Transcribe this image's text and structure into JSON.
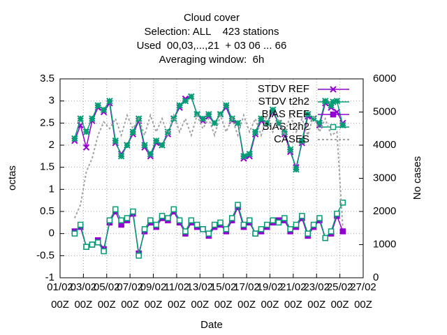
{
  "chart_data": {
    "type": "line",
    "title": [
      "Cloud cover",
      "Selection: ALL    423 stations",
      "Used  00,03,...,21  + 03 06 ... 66",
      "Averaging window:  6h"
    ],
    "xlabel": "Date",
    "ylabel": "octas",
    "y2label": "No cases",
    "xlim": [
      0,
      26
    ],
    "xticks": [
      {
        "value": 0,
        "label": "01/02 00Z"
      },
      {
        "value": 2,
        "label": "03/02 00Z"
      },
      {
        "value": 4,
        "label": "05/02 00Z"
      },
      {
        "value": 6,
        "label": "07/02 00Z"
      },
      {
        "value": 8,
        "label": "09/02 00Z"
      },
      {
        "value": 10,
        "label": "11/02 00Z"
      },
      {
        "value": 12,
        "label": "13/02 00Z"
      },
      {
        "value": 14,
        "label": "15/02 00Z"
      },
      {
        "value": 16,
        "label": "17/02 00Z"
      },
      {
        "value": 18,
        "label": "19/02 00Z"
      },
      {
        "value": 20,
        "label": "21/02 00Z"
      },
      {
        "value": 22,
        "label": "23/02 00Z"
      },
      {
        "value": 24,
        "label": "25/02 00Z"
      },
      {
        "value": 26,
        "label": "27/02 00Z"
      }
    ],
    "ylim": [
      -1,
      3.5
    ],
    "yticks": [
      -1,
      -0.5,
      0,
      0.5,
      1,
      1.5,
      2,
      2.5,
      3,
      3.5
    ],
    "y2lim": [
      0,
      6000
    ],
    "y2ticks": [
      0,
      1000,
      2000,
      3000,
      4000,
      5000,
      6000
    ],
    "grid": true,
    "legend": "top-right",
    "x": [
      1.25,
      1.75,
      2.25,
      2.75,
      3.25,
      3.75,
      4.25,
      4.75,
      5.25,
      5.75,
      6.25,
      6.75,
      7.25,
      7.75,
      8.25,
      8.75,
      9.25,
      9.75,
      10.25,
      10.75,
      11.25,
      11.75,
      12.25,
      12.75,
      13.25,
      13.75,
      14.25,
      14.75,
      15.25,
      15.75,
      16.25,
      16.75,
      17.25,
      17.75,
      18.25,
      18.75,
      19.25,
      19.75,
      20.25,
      20.75,
      21.25,
      21.75,
      22.25,
      22.75,
      23.25,
      23.75,
      24.25
    ],
    "series": [
      {
        "name": "STDV REF",
        "color": "#9400d3",
        "marker": "star",
        "values": [
          2.1,
          2.45,
          1.95,
          2.55,
          2.85,
          2.75,
          2.95,
          2.05,
          1.8,
          2.0,
          2.25,
          2.55,
          1.95,
          1.75,
          2.05,
          2.0,
          2.25,
          2.6,
          2.85,
          3.05,
          3.1,
          2.7,
          2.55,
          2.65,
          2.5,
          2.7,
          2.85,
          2.55,
          2.5,
          1.7,
          1.75,
          2.25,
          2.55,
          2.5,
          2.75,
          2.5,
          2.25,
          1.85,
          1.5,
          2.05,
          2.65,
          2.6,
          2.45,
          2.95,
          2.85,
          2.75,
          2.5
        ]
      },
      {
        "name": "STDV t2h2",
        "color": "#009e73",
        "marker": "asterisk",
        "values": [
          2.15,
          2.6,
          2.3,
          2.6,
          2.9,
          2.8,
          3.0,
          2.1,
          1.75,
          2.0,
          2.3,
          2.6,
          2.0,
          1.8,
          2.1,
          2.0,
          2.3,
          2.6,
          2.9,
          3.0,
          3.1,
          2.7,
          2.6,
          2.7,
          2.5,
          2.7,
          2.9,
          2.6,
          2.5,
          1.75,
          1.8,
          2.3,
          2.6,
          2.5,
          2.8,
          2.5,
          2.3,
          1.9,
          1.45,
          2.1,
          2.7,
          2.6,
          2.5,
          3.0,
          2.9,
          3.0,
          2.45
        ]
      },
      {
        "name": "BIAS REF",
        "color": "#9400d3",
        "marker": "filled-square",
        "values": [
          0.05,
          0.15,
          -0.3,
          -0.25,
          -0.15,
          -0.35,
          0.25,
          0.5,
          0.2,
          0.3,
          0.45,
          -0.45,
          0.05,
          0.25,
          0.15,
          0.35,
          0.3,
          0.5,
          0.25,
          0.0,
          0.25,
          0.15,
          0.1,
          -0.05,
          0.15,
          0.2,
          0.05,
          0.3,
          0.6,
          0.15,
          0.25,
          0.0,
          0.05,
          0.15,
          0.25,
          0.3,
          0.3,
          0.05,
          0.15,
          0.35,
          -0.05,
          0.15,
          0.3,
          -0.1,
          0.0,
          0.4,
          0.05
        ]
      },
      {
        "name": "BIAS t2h2",
        "color": "#009e73",
        "marker": "open-square",
        "values": [
          0.0,
          0.2,
          -0.3,
          -0.25,
          -0.2,
          -0.4,
          0.3,
          0.55,
          0.3,
          0.35,
          0.5,
          -0.5,
          0.1,
          0.3,
          0.2,
          0.4,
          0.35,
          0.55,
          0.3,
          0.05,
          0.3,
          0.2,
          0.1,
          0.0,
          0.2,
          0.25,
          0.1,
          0.35,
          0.65,
          0.2,
          0.3,
          0.0,
          0.1,
          0.2,
          0.3,
          0.25,
          0.35,
          0.1,
          0.2,
          0.4,
          0.0,
          0.2,
          0.35,
          -0.1,
          0.05,
          0.45,
          0.7
        ]
      },
      {
        "name": "CASES",
        "color": "#a0a0a0",
        "axis": "y2",
        "dashed": true,
        "values": [
          1800,
          2200,
          3200,
          3600,
          4300,
          4700,
          4500,
          4800,
          4300,
          4900,
          4500,
          4800,
          4300,
          4900,
          4400,
          4800,
          4300,
          4900,
          4400,
          4800,
          4300,
          4900,
          4500,
          4800,
          4300,
          4900,
          4400,
          4800,
          4300,
          4900,
          4400,
          4800,
          4300,
          4900,
          4400,
          4800,
          4300,
          4900,
          4400,
          4800,
          4300,
          4900,
          4400,
          4800,
          4300,
          4400,
          1500
        ]
      }
    ]
  }
}
